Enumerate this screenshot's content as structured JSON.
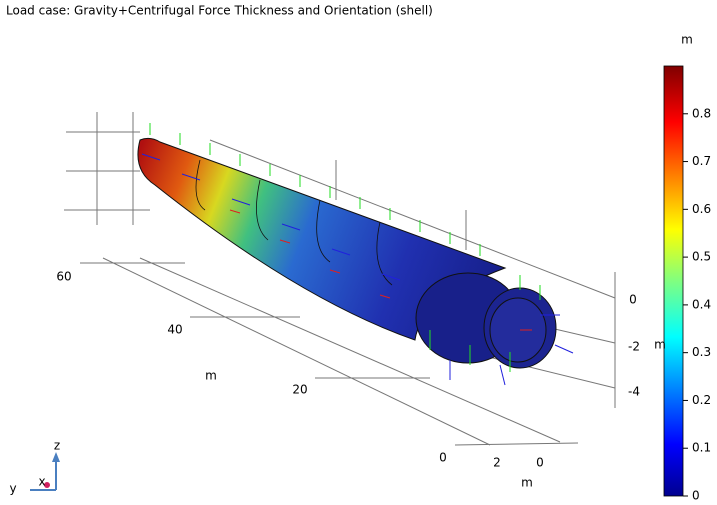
{
  "chart_data": {
    "type": "surface",
    "title": "Load case: Gravity+Centrifugal Force  Thickness and Orientation (shell)",
    "colorbar": {
      "label": "m",
      "lim": [
        0,
        0.9
      ],
      "ticks": [
        0,
        0.1,
        0.2,
        0.3,
        0.4,
        0.5,
        0.6,
        0.7,
        0.8
      ]
    },
    "length_axis": {
      "label": "m",
      "ticks": [
        60,
        40,
        20,
        0
      ]
    },
    "width_axis": {
      "label": "m",
      "ticks": [
        2,
        0
      ]
    },
    "height_axis": {
      "label": "m",
      "ticks": [
        0,
        -2,
        -4
      ]
    },
    "triad": [
      "z",
      "y",
      "x"
    ]
  }
}
